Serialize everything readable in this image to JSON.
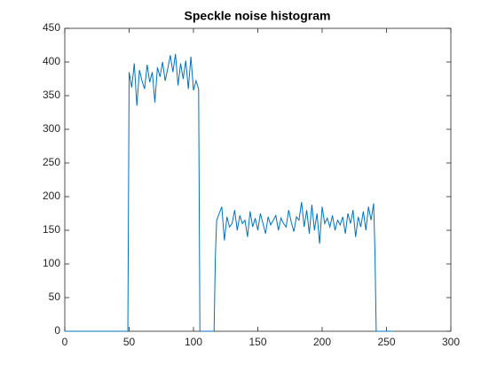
{
  "chart_data": {
    "type": "line",
    "title": "Speckle noise histogram",
    "color": "#0072bd",
    "x": [
      0,
      49,
      50,
      52,
      54,
      56,
      58,
      60,
      62,
      64,
      66,
      68,
      70,
      72,
      74,
      76,
      78,
      80,
      82,
      84,
      86,
      88,
      90,
      92,
      94,
      96,
      98,
      100,
      102,
      104,
      105,
      116,
      117,
      118,
      120,
      122,
      124,
      126,
      128,
      130,
      132,
      134,
      136,
      138,
      140,
      142,
      144,
      146,
      148,
      150,
      152,
      154,
      156,
      158,
      160,
      162,
      164,
      166,
      168,
      170,
      172,
      174,
      176,
      178,
      180,
      182,
      184,
      186,
      188,
      190,
      192,
      194,
      196,
      198,
      200,
      202,
      204,
      206,
      208,
      210,
      212,
      214,
      216,
      218,
      220,
      222,
      224,
      226,
      228,
      230,
      232,
      234,
      236,
      238,
      240,
      241,
      242,
      255
    ],
    "values": [
      0,
      0,
      385,
      362,
      398,
      335,
      388,
      372,
      360,
      396,
      370,
      385,
      340,
      392,
      378,
      400,
      372,
      390,
      410,
      385,
      412,
      365,
      398,
      375,
      402,
      360,
      408,
      358,
      372,
      360,
      0,
      0,
      110,
      165,
      175,
      185,
      135,
      170,
      155,
      160,
      180,
      150,
      172,
      160,
      165,
      140,
      178,
      155,
      168,
      150,
      175,
      160,
      145,
      170,
      158,
      165,
      172,
      150,
      168,
      160,
      155,
      180,
      162,
      148,
      170,
      165,
      192,
      155,
      180,
      145,
      188,
      150,
      175,
      130,
      185,
      160,
      168,
      155,
      172,
      150,
      165,
      158,
      170,
      145,
      175,
      160,
      180,
      140,
      170,
      155,
      178,
      150,
      185,
      165,
      190,
      120,
      0,
      0
    ],
    "xlim": [
      0,
      300
    ],
    "xticks": [
      0,
      50,
      100,
      150,
      200,
      250,
      300
    ],
    "ylim": [
      0,
      450
    ],
    "yticks": [
      0,
      50,
      100,
      150,
      200,
      250,
      300,
      350,
      400,
      450
    ]
  }
}
